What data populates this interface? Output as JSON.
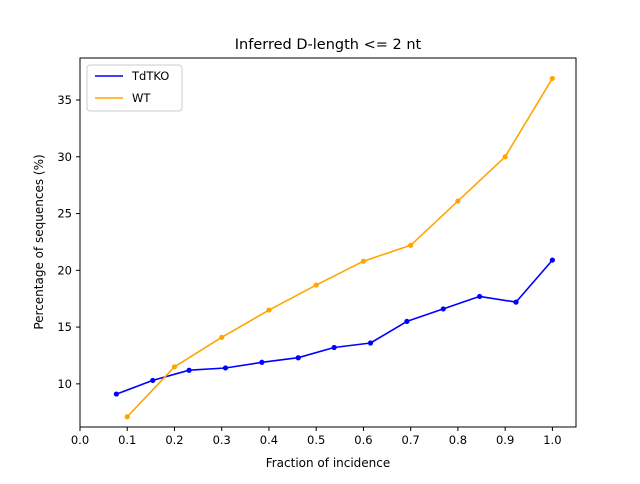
{
  "chart_data": {
    "type": "line",
    "title": "Inferred D-length <= 2 nt",
    "xlabel": "Fraction of incidence",
    "ylabel": "Percentage of sequences (%)",
    "xlim": [
      0.0,
      1.05
    ],
    "ylim": [
      6.2,
      38.7
    ],
    "xticks": [
      0.0,
      0.1,
      0.2,
      0.3,
      0.4,
      0.5,
      0.6,
      0.7,
      0.8,
      0.9,
      1.0
    ],
    "xtick_labels": [
      "0.0",
      "0.1",
      "0.2",
      "0.3",
      "0.4",
      "0.5",
      "0.6",
      "0.7",
      "0.8",
      "0.9",
      "1.0"
    ],
    "yticks": [
      10,
      15,
      20,
      25,
      30,
      35
    ],
    "ytick_labels": [
      "10",
      "15",
      "20",
      "25",
      "30",
      "35"
    ],
    "grid": false,
    "legend_position": "upper-left",
    "series": [
      {
        "name": "TdTKO",
        "color": "#0000ff",
        "x": [
          0.077,
          0.154,
          0.231,
          0.308,
          0.385,
          0.462,
          0.538,
          0.615,
          0.692,
          0.769,
          0.846,
          0.923,
          1.0
        ],
        "y": [
          9.1,
          10.3,
          11.2,
          11.4,
          11.9,
          12.3,
          13.2,
          13.6,
          15.5,
          16.6,
          17.7,
          17.2,
          20.9
        ]
      },
      {
        "name": "WT",
        "color": "#ffa500",
        "x": [
          0.1,
          0.2,
          0.3,
          0.4,
          0.5,
          0.6,
          0.7,
          0.8,
          0.9,
          1.0
        ],
        "y": [
          7.1,
          11.5,
          14.1,
          16.5,
          18.7,
          20.8,
          22.2,
          26.1,
          30.0,
          36.9
        ]
      }
    ]
  }
}
